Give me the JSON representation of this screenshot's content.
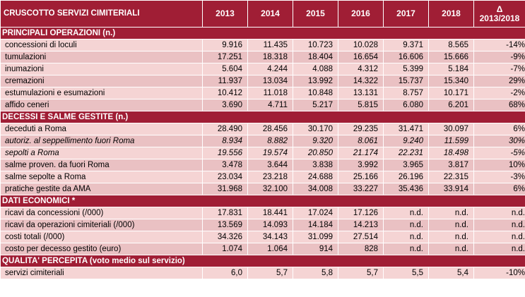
{
  "header": {
    "title": "CRUSCOTTO SERVIZI CIMITERIALI",
    "years": [
      "2013",
      "2014",
      "2015",
      "2016",
      "2017",
      "2018"
    ],
    "delta_symbol": "Δ",
    "delta_label": "2013/2018"
  },
  "sections": [
    {
      "title": "PRINCIPALI OPERAZIONI (n.)",
      "rows": [
        {
          "label": "concessioni di loculi",
          "values": [
            "9.916",
            "11.435",
            "10.723",
            "10.028",
            "9.371",
            "8.565"
          ],
          "delta": "-14%"
        },
        {
          "label": "tumulazioni",
          "values": [
            "17.251",
            "18.318",
            "18.404",
            "16.654",
            "16.606",
            "15.666"
          ],
          "delta": "-9%"
        },
        {
          "label": "inumazioni",
          "values": [
            "5.604",
            "4.244",
            "4.088",
            "4.312",
            "5.399",
            "5.184"
          ],
          "delta": "-7%"
        },
        {
          "label": "cremazioni",
          "values": [
            "11.937",
            "13.034",
            "13.992",
            "14.322",
            "15.737",
            "15.340"
          ],
          "delta": "29%"
        },
        {
          "label": "estumulazioni e esumazioni",
          "values": [
            "10.412",
            "11.018",
            "10.848",
            "13.131",
            "8.757",
            "10.171"
          ],
          "delta": "-2%"
        },
        {
          "label": "affido ceneri",
          "values": [
            "3.690",
            "4.711",
            "5.217",
            "5.815",
            "6.080",
            "6.201"
          ],
          "delta": "68%"
        }
      ]
    },
    {
      "title": "DECESSI E SALME GESTITE (n.)",
      "rows": [
        {
          "label": "deceduti a Roma",
          "values": [
            "28.490",
            "28.456",
            "30.170",
            "29.235",
            "31.471",
            "30.097"
          ],
          "delta": "6%"
        },
        {
          "label": "autoriz. al seppellimento fuori Roma",
          "values": [
            "8.934",
            "8.882",
            "9.320",
            "8.061",
            "9.240",
            "11.599"
          ],
          "delta": "30%",
          "italic": true
        },
        {
          "label": "sepolti a Roma",
          "values": [
            "19.556",
            "19.574",
            "20.850",
            "21.174",
            "22.231",
            "18.498"
          ],
          "delta": "-5%",
          "italic": true
        },
        {
          "label": "salme proven. da fuori Roma",
          "values": [
            "3.478",
            "3.644",
            "3.838",
            "3.992",
            "3.965",
            "3.817"
          ],
          "delta": "10%"
        },
        {
          "label": "salme sepolte a Roma",
          "values": [
            "23.034",
            "23.218",
            "24.688",
            "25.166",
            "26.196",
            "22.315"
          ],
          "delta": "-3%"
        },
        {
          "label": "pratiche gestite da AMA",
          "values": [
            "31.968",
            "32.100",
            "34.008",
            "33.227",
            "35.436",
            "33.914"
          ],
          "delta": "6%"
        }
      ]
    },
    {
      "title": "DATI ECONOMICI *",
      "rows": [
        {
          "label": "ricavi da concessioni (/000)",
          "values": [
            "17.831",
            "18.441",
            "17.024",
            "17.126",
            "n.d.",
            "n.d."
          ],
          "delta": "n.d."
        },
        {
          "label": "ricavi da operazioni cimiteriali (/000)",
          "values": [
            "13.569",
            "14.093",
            "14.184",
            "14.213",
            "n.d.",
            "n.d."
          ],
          "delta": "n.d."
        },
        {
          "label": "costi totali (/000)",
          "values": [
            "34.326",
            "34.143",
            "31.099",
            "27.514",
            "n.d.",
            "n.d."
          ],
          "delta": "n.d."
        },
        {
          "label": "costo per decesso gestito (euro)",
          "values": [
            "1.074",
            "1.064",
            "914",
            "828",
            "n.d.",
            "n.d."
          ],
          "delta": "n.d."
        }
      ]
    },
    {
      "title": "QUALITA' PERCEPITA (voto medio sul servizio)",
      "rows": [
        {
          "label": "servizi cimiteriali",
          "values": [
            "6,0",
            "5,7",
            "5,8",
            "5,7",
            "5,5",
            "5,4"
          ],
          "delta": "-10%"
        }
      ]
    }
  ],
  "colors": {
    "header_bg": "#a01e35",
    "row_light": "#f5d4d4",
    "row_dark": "#eac1c3"
  }
}
